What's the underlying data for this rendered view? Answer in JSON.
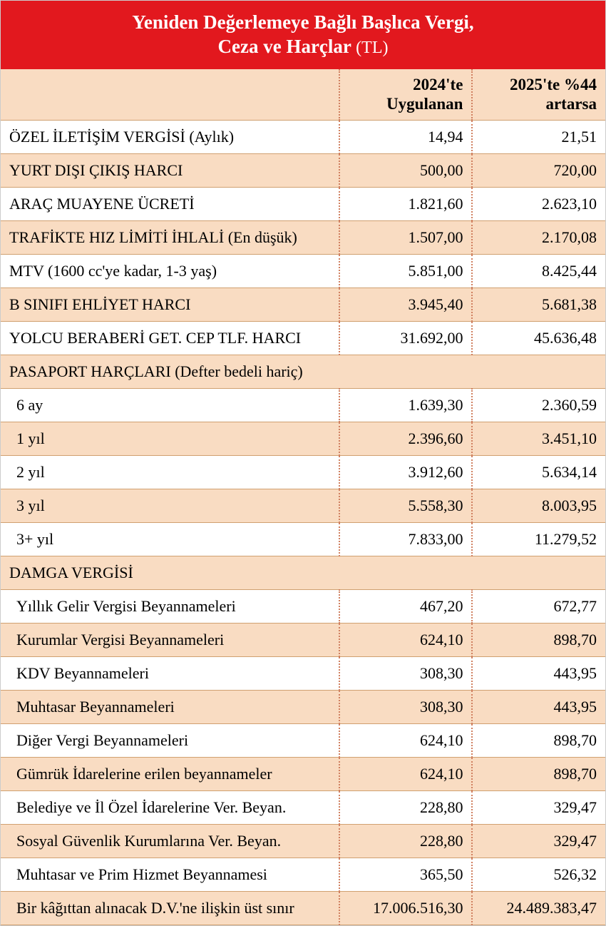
{
  "title_line1": "Yeniden Değerlemeye Bağlı Başlıca Vergi,",
  "title_line2": "Ceza ve Harçlar",
  "title_unit": "(TL)",
  "columns": {
    "col1": "",
    "col2": "2024'te Uygulanan",
    "col3": "2025'te %44 artarsa"
  },
  "styling": {
    "header_bg": "#e2181e",
    "header_text": "#ffffff",
    "row_even_bg": "#f9dcc2",
    "row_odd_bg": "#ffffff",
    "border_color": "#d0a070",
    "dotted_divider": "#d08060",
    "title_fontsize": 27,
    "body_fontsize": 22,
    "header_cell_fontsize": 23
  },
  "rows": [
    {
      "label": "ÖZEL İLETİŞİM VERGİSİ (Aylık)",
      "v2024": "14,94",
      "v2025": "21,51",
      "stripe": "odd",
      "indent": false,
      "section": false
    },
    {
      "label": "YURT DIŞI ÇIKIŞ HARCI",
      "v2024": "500,00",
      "v2025": "720,00",
      "stripe": "even",
      "indent": false,
      "section": false
    },
    {
      "label": "ARAÇ MUAYENE ÜCRETİ",
      "v2024": "1.821,60",
      "v2025": "2.623,10",
      "stripe": "odd",
      "indent": false,
      "section": false
    },
    {
      "label": "TRAFİKTE HIZ LİMİTİ İHLALİ (En düşük)",
      "v2024": "1.507,00",
      "v2025": "2.170,08",
      "stripe": "even",
      "indent": false,
      "section": false
    },
    {
      "label": "MTV (1600 cc'ye kadar, 1-3 yaş)",
      "v2024": "5.851,00",
      "v2025": "8.425,44",
      "stripe": "odd",
      "indent": false,
      "section": false
    },
    {
      "label": "B SINIFI EHLİYET HARCI",
      "v2024": "3.945,40",
      "v2025": "5.681,38",
      "stripe": "even",
      "indent": false,
      "section": false
    },
    {
      "label": "YOLCU BERABERİ GET. CEP TLF. HARCI",
      "v2024": "31.692,00",
      "v2025": "45.636,48",
      "stripe": "odd",
      "indent": false,
      "section": false
    },
    {
      "label": "PASAPORT HARÇLARI (Defter bedeli hariç)",
      "v2024": "",
      "v2025": "",
      "stripe": "even",
      "indent": false,
      "section": true
    },
    {
      "label": "6 ay",
      "v2024": "1.639,30",
      "v2025": "2.360,59",
      "stripe": "odd",
      "indent": true,
      "section": false
    },
    {
      "label": "1 yıl",
      "v2024": "2.396,60",
      "v2025": "3.451,10",
      "stripe": "even",
      "indent": true,
      "section": false
    },
    {
      "label": "2 yıl",
      "v2024": "3.912,60",
      "v2025": "5.634,14",
      "stripe": "odd",
      "indent": true,
      "section": false
    },
    {
      "label": "3 yıl",
      "v2024": "5.558,30",
      "v2025": "8.003,95",
      "stripe": "even",
      "indent": true,
      "section": false
    },
    {
      "label": "3+ yıl",
      "v2024": "7.833,00",
      "v2025": "11.279,52",
      "stripe": "odd",
      "indent": true,
      "section": false
    },
    {
      "label": "DAMGA VERGİSİ",
      "v2024": "",
      "v2025": "",
      "stripe": "even",
      "indent": false,
      "section": true
    },
    {
      "label": "Yıllık Gelir Vergisi Beyannameleri",
      "v2024": "467,20",
      "v2025": "672,77",
      "stripe": "odd",
      "indent": true,
      "section": false
    },
    {
      "label": "Kurumlar Vergisi Beyannameleri",
      "v2024": "624,10",
      "v2025": "898,70",
      "stripe": "even",
      "indent": true,
      "section": false
    },
    {
      "label": "KDV Beyannameleri",
      "v2024": "308,30",
      "v2025": "443,95",
      "stripe": "odd",
      "indent": true,
      "section": false
    },
    {
      "label": "Muhtasar Beyannameleri",
      "v2024": "308,30",
      "v2025": "443,95",
      "stripe": "even",
      "indent": true,
      "section": false
    },
    {
      "label": "Diğer Vergi Beyannameleri",
      "v2024": "624,10",
      "v2025": "898,70",
      "stripe": "odd",
      "indent": true,
      "section": false
    },
    {
      "label": "Gümrük İdarelerine erilen beyannameler",
      "v2024": "624,10",
      "v2025": "898,70",
      "stripe": "even",
      "indent": true,
      "section": false
    },
    {
      "label": "Belediye ve İl Özel İdarelerine Ver. Beyan.",
      "v2024": "228,80",
      "v2025": "329,47",
      "stripe": "odd",
      "indent": true,
      "section": false
    },
    {
      "label": "Sosyal Güvenlik Kurumlarına Ver. Beyan.",
      "v2024": "228,80",
      "v2025": "329,47",
      "stripe": "even",
      "indent": true,
      "section": false
    },
    {
      "label": "Muhtasar ve Prim Hizmet Beyannamesi",
      "v2024": "365,50",
      "v2025": "526,32",
      "stripe": "odd",
      "indent": true,
      "section": false
    },
    {
      "label": "Bir kâğıttan alınacak D.V.'ne ilişkin üst sınır",
      "v2024": "17.006.516,30",
      "v2025": "24.489.383,47",
      "stripe": "even",
      "indent": true,
      "section": false
    }
  ]
}
